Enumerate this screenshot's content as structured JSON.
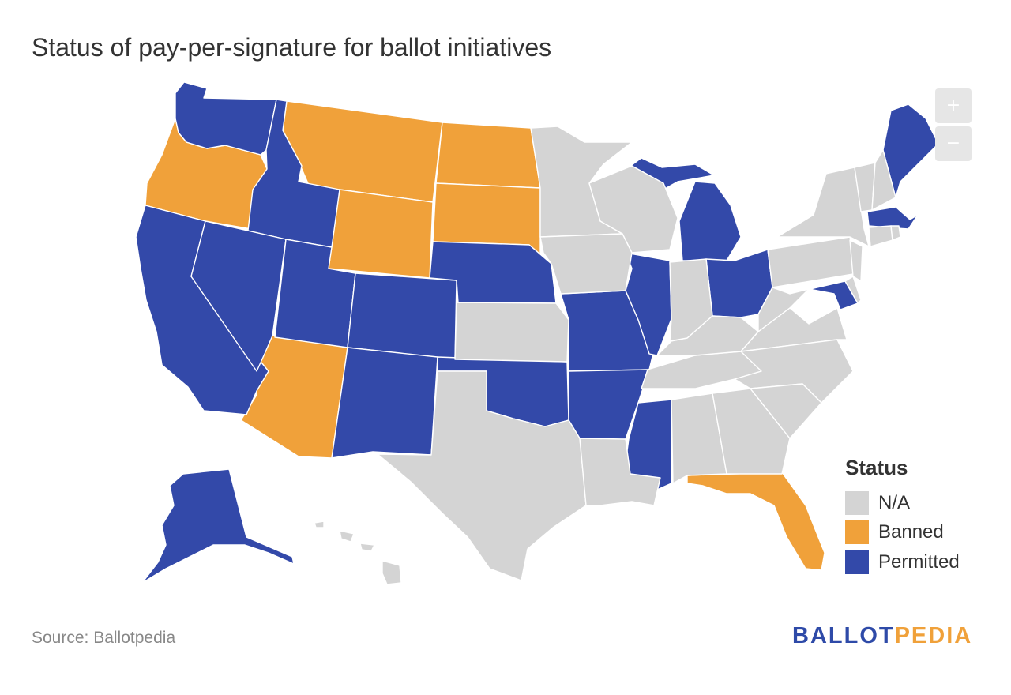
{
  "title": "Status of pay-per-signature for ballot initiatives",
  "zoom": {
    "in_label": "+",
    "out_label": "−"
  },
  "legend": {
    "title": "Status",
    "items": [
      {
        "key": "na",
        "label": "N/A",
        "color": "#d4d4d4"
      },
      {
        "key": "banned",
        "label": "Banned",
        "color": "#f0a13a"
      },
      {
        "key": "permitted",
        "label": "Permitted",
        "color": "#3349a9"
      }
    ]
  },
  "source": "Source: Ballotpedia",
  "logo": {
    "part1": "BALLOT",
    "part2": "PEDIA",
    "color1": "#2e4aa8",
    "color2": "#f0a13a"
  },
  "states": {
    "banned": [
      "Oregon",
      "Montana",
      "North Dakota",
      "South Dakota",
      "Wyoming",
      "Arizona",
      "Florida"
    ],
    "permitted": [
      "Washington",
      "Idaho",
      "California",
      "Nevada",
      "Utah",
      "Colorado",
      "Nebraska",
      "New Mexico",
      "Oklahoma",
      "Missouri",
      "Arkansas",
      "Illinois",
      "Mississippi",
      "Michigan",
      "Ohio",
      "Maryland",
      "Massachusetts",
      "Maine",
      "Alaska"
    ],
    "na": [
      "Minnesota",
      "Wisconsin",
      "Iowa",
      "Kansas",
      "Texas",
      "Louisiana",
      "Alabama",
      "Georgia",
      "Tennessee",
      "Kentucky",
      "Indiana",
      "West Virginia",
      "Virginia",
      "North Carolina",
      "South Carolina",
      "Pennsylvania",
      "New York",
      "New Jersey",
      "Delaware",
      "Connecticut",
      "Rhode Island",
      "Vermont",
      "New Hampshire",
      "Hawaii"
    ]
  }
}
